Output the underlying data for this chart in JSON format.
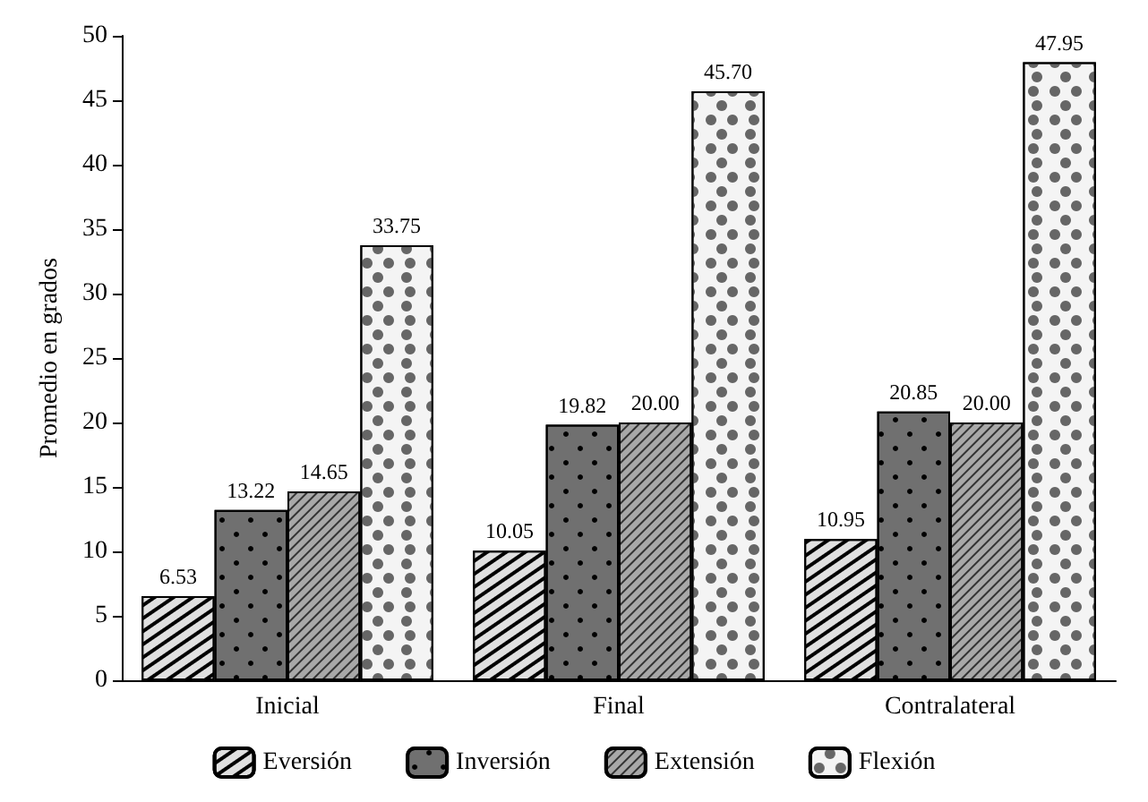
{
  "chart_data": {
    "type": "bar",
    "ylabel": "Promedio en grados",
    "categories": [
      "Inicial",
      "Final",
      "Contralateral"
    ],
    "series": [
      {
        "name": "Eversión",
        "color": "#e0e0e0",
        "values": [
          6.53,
          10.05,
          10.95
        ],
        "value_labels": [
          "6.53",
          "10.05",
          "10.95"
        ]
      },
      {
        "name": "Inversión",
        "color": "#707070",
        "values": [
          13.22,
          19.82,
          20.85
        ],
        "value_labels": [
          "13.22",
          "19.82",
          "20.85"
        ]
      },
      {
        "name": "Extensión",
        "color": "#a8a8a8",
        "values": [
          14.65,
          20.0,
          20.0
        ],
        "value_labels": [
          "14.65",
          "20.00",
          "20.00"
        ]
      },
      {
        "name": "Flexión",
        "color": "#f4f4f4",
        "values": [
          33.75,
          45.7,
          47.95
        ],
        "value_labels": [
          "33.75",
          "45.70",
          "47.95"
        ]
      }
    ],
    "ylim": [
      0,
      50
    ],
    "yticks": [
      0,
      5,
      10,
      15,
      20,
      25,
      30,
      35,
      40,
      45,
      50
    ],
    "legend": "bottom",
    "grid": false
  }
}
